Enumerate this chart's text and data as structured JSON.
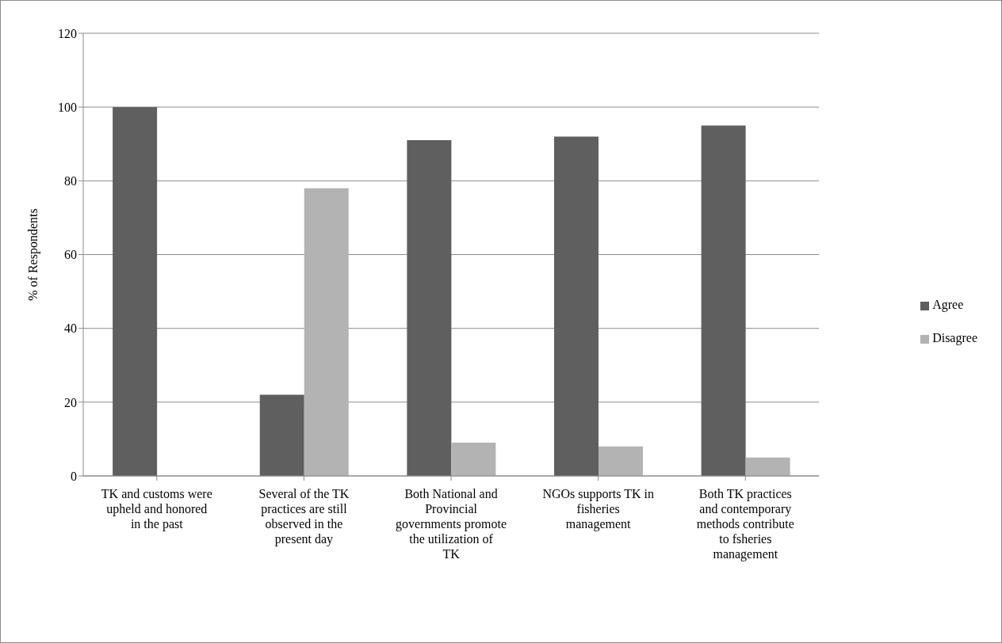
{
  "chart_data": {
    "type": "bar",
    "ylabel": "% of Respondents",
    "categories": [
      "TK and customs were upheld and honored in the past",
      "Several of the TK practices are still observed in the present day",
      "Both National and Provincial governments promote the utilization of TK",
      "NGOs supports TK in fisheries management",
      "Both TK practices and contemporary methods contribute to fsheries management"
    ],
    "series": [
      {
        "name": "Agree",
        "color": "#5f5f5f",
        "values": [
          100,
          22,
          91,
          92,
          95
        ]
      },
      {
        "name": "Disagree",
        "color": "#b3b3b3",
        "values": [
          0,
          78,
          9,
          8,
          5
        ]
      }
    ],
    "ylim": [
      0,
      120
    ],
    "yticks": [
      0,
      20,
      40,
      60,
      80,
      100,
      120
    ],
    "grid": "y",
    "legend": "right"
  }
}
